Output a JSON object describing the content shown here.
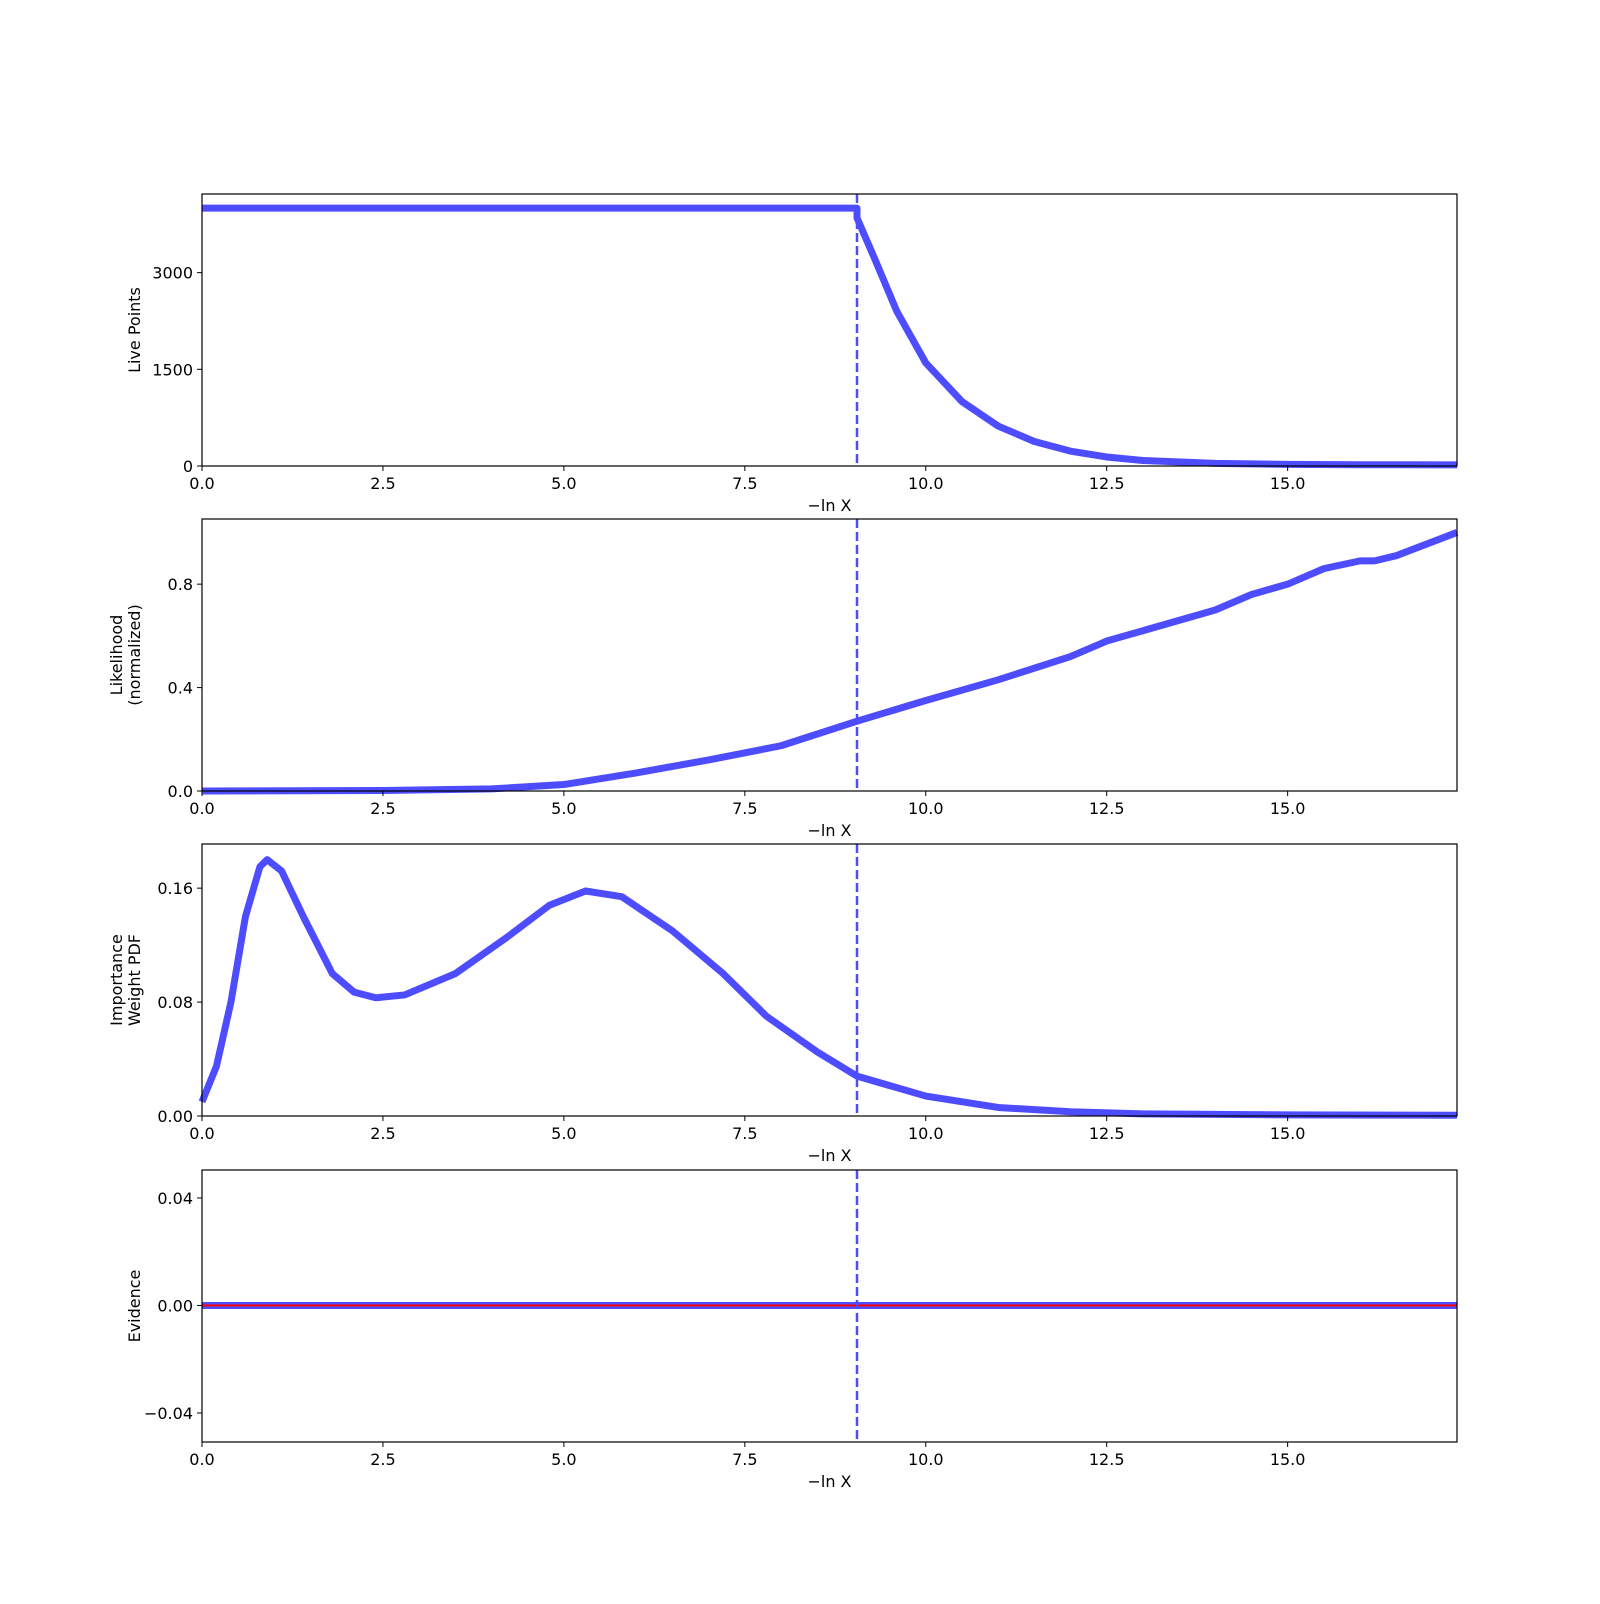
{
  "chart_data": [
    {
      "type": "line",
      "xlabel": "−ln X",
      "ylabel": [
        "Live Points"
      ],
      "xlim": [
        0,
        17.34
      ],
      "ylim": [
        0,
        4220
      ],
      "xticks": [
        {
          "value": 0,
          "label": "0.0"
        },
        2.5,
        {
          "value": 5,
          "label": "5.0"
        },
        7.5,
        {
          "value": 10,
          "label": "10.0"
        },
        12.5,
        {
          "value": 15,
          "label": "15.0"
        }
      ],
      "yticks": [
        0,
        1500,
        3000
      ],
      "vline": 9.05,
      "vline_color": "#4d4dff",
      "series": [
        {
          "color": "#4d4dff",
          "x": [
            0,
            9.05,
            9.05,
            9.3,
            9.6,
            10,
            10.5,
            11,
            11.5,
            12,
            12.5,
            13,
            14,
            15,
            16,
            17.34
          ],
          "values": [
            4000,
            4000,
            3850,
            3200,
            2400,
            1600,
            1000,
            620,
            380,
            230,
            140,
            85,
            40,
            25,
            20,
            18
          ]
        }
      ]
    },
    {
      "type": "line",
      "xlabel": "−ln X",
      "ylabel": [
        "Likelihood",
        "(normalized)"
      ],
      "xlim": [
        0,
        17.34
      ],
      "ylim": [
        0,
        1.052
      ],
      "xticks": [
        {
          "value": 0,
          "label": "0.0"
        },
        2.5,
        {
          "value": 5,
          "label": "5.0"
        },
        7.5,
        {
          "value": 10,
          "label": "10.0"
        },
        12.5,
        {
          "value": 15,
          "label": "15.0"
        }
      ],
      "yticks": [
        {
          "value": 0,
          "label": "0.0"
        },
        0.4,
        0.8
      ],
      "vline": 9.05,
      "vline_color": "#4d4dff",
      "series": [
        {
          "color": "#4d4dff",
          "x": [
            0,
            2.5,
            4,
            5,
            6,
            7,
            8,
            9.05,
            10,
            11,
            12,
            12.5,
            13,
            14,
            14.5,
            15,
            15.5,
            16,
            16.2,
            16.5,
            17.34
          ],
          "values": [
            0,
            0.002,
            0.008,
            0.025,
            0.07,
            0.12,
            0.175,
            0.27,
            0.35,
            0.43,
            0.52,
            0.58,
            0.62,
            0.7,
            0.76,
            0.8,
            0.86,
            0.89,
            0.89,
            0.91,
            1.0
          ]
        }
      ]
    },
    {
      "type": "line",
      "xlabel": "−ln X",
      "ylabel": [
        "Importance",
        "Weight PDF"
      ],
      "xlim": [
        0,
        17.34
      ],
      "ylim": [
        0,
        0.191
      ],
      "xticks": [
        {
          "value": 0,
          "label": "0.0"
        },
        2.5,
        {
          "value": 5,
          "label": "5.0"
        },
        7.5,
        {
          "value": 10,
          "label": "10.0"
        },
        12.5,
        {
          "value": 15,
          "label": "15.0"
        }
      ],
      "yticks": [
        {
          "value": 0,
          "label": "0.00"
        },
        0.08,
        0.16
      ],
      "vline": 9.05,
      "vline_color": "#4d4dff",
      "series": [
        {
          "color": "#4d4dff",
          "x": [
            0,
            0.2,
            0.4,
            0.6,
            0.8,
            0.9,
            1.1,
            1.4,
            1.8,
            2.1,
            2.4,
            2.8,
            3.5,
            4.2,
            4.8,
            5.3,
            5.8,
            6.5,
            7.2,
            7.8,
            8.5,
            9.05,
            10,
            11,
            12,
            13,
            15,
            17.34
          ],
          "values": [
            0.01,
            0.035,
            0.08,
            0.14,
            0.175,
            0.18,
            0.172,
            0.14,
            0.1,
            0.087,
            0.083,
            0.085,
            0.1,
            0.125,
            0.148,
            0.158,
            0.154,
            0.13,
            0.1,
            0.07,
            0.045,
            0.028,
            0.014,
            0.006,
            0.003,
            0.0015,
            0.0008,
            0.0005
          ]
        }
      ]
    },
    {
      "type": "line",
      "xlabel": "−ln X",
      "ylabel": [
        "Evidence"
      ],
      "xlim": [
        0,
        17.34
      ],
      "ylim": [
        -0.0508,
        0.0504
      ],
      "xticks": [
        {
          "value": 0,
          "label": "0.0"
        },
        2.5,
        {
          "value": 5,
          "label": "5.0"
        },
        7.5,
        {
          "value": 10,
          "label": "10.0"
        },
        12.5,
        {
          "value": 15,
          "label": "15.0"
        }
      ],
      "yticks": [
        {
          "value": -0.04,
          "label": "−0.04"
        },
        {
          "value": 0,
          "label": "0.00"
        },
        0.04
      ],
      "vline": 9.05,
      "vline_color": "#4d4dff",
      "series": [
        {
          "color": "#4d4dff",
          "x": [
            0,
            17.34
          ],
          "values": [
            0,
            0
          ]
        },
        {
          "color": "#ff0000",
          "x": [
            0,
            17.34
          ],
          "values": [
            0,
            0
          ]
        }
      ]
    }
  ]
}
